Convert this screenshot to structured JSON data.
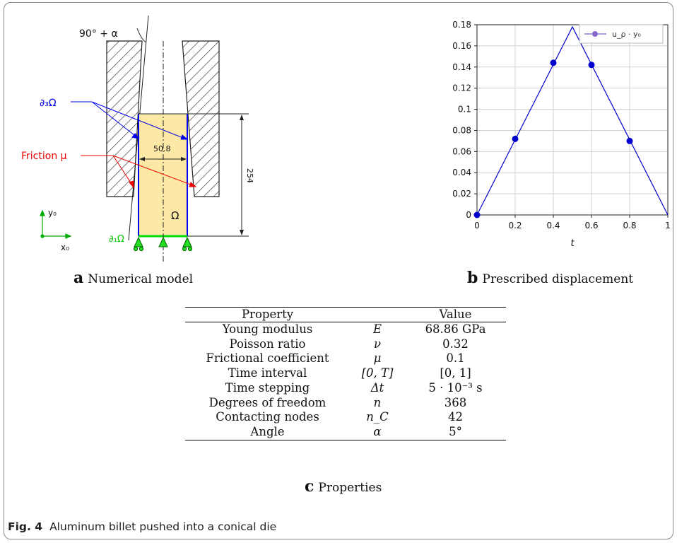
{
  "figure_a": {
    "angle_label": "90° + α",
    "boundary3_label": "∂₃Ω",
    "friction_label": "Friction μ",
    "width_label": "50.8",
    "height_label": "254",
    "domain_label": "Ω",
    "boundary1_label": "∂₁Ω",
    "axis_y_label": "y₀",
    "axis_x_label": "x₀",
    "sub_letter": "a",
    "sub_caption": "Numerical model",
    "colors": {
      "billet": "#fde9a6",
      "boundary3": "#0000ee",
      "friction": "#ee0000",
      "boundary1": "#00cc00",
      "axes": "#00aa00"
    }
  },
  "figure_b": {
    "sub_letter": "b",
    "sub_caption": "Prescribed displacement",
    "chart_data": {
      "type": "line",
      "xlabel": "t",
      "ylabel": "",
      "xlim": [
        0,
        1
      ],
      "ylim": [
        0,
        0.18
      ],
      "x_ticks": [
        "0",
        "0.2",
        "0.4",
        "0.6",
        "0.8",
        "1"
      ],
      "y_ticks": [
        "0",
        "0.02",
        "0.04",
        "0.06",
        "0.08",
        "0.1",
        "0.12",
        "0.14",
        "0.16",
        "0.18"
      ],
      "grid": true,
      "legend": "top-right",
      "series": [
        {
          "name": "u_ρ · y₀",
          "color": "#0000cc",
          "line_x": [
            0,
            0.5,
            1
          ],
          "line_y": [
            0,
            0.178,
            0
          ],
          "markers_x": [
            0,
            0.2,
            0.4,
            0.6,
            0.8
          ],
          "markers_y": [
            0,
            0.072,
            0.144,
            0.142,
            0.07
          ]
        }
      ]
    }
  },
  "figure_c": {
    "sub_letter": "c",
    "sub_caption": "Properties",
    "header": {
      "property": "Property",
      "value": "Value"
    },
    "rows": [
      {
        "property": "Young modulus",
        "symbol": "E",
        "value": "68.86 GPa"
      },
      {
        "property": "Poisson ratio",
        "symbol": "ν",
        "value": "0.32"
      },
      {
        "property": "Frictional coefficient",
        "symbol": "μ",
        "value": "0.1"
      },
      {
        "property": "Time interval",
        "symbol": "[0, T]",
        "value": "[0, 1]"
      },
      {
        "property": "Time stepping",
        "symbol": "Δt",
        "value": "5 · 10⁻³ s"
      },
      {
        "property": "Degrees of freedom",
        "symbol": "n",
        "value": "368"
      },
      {
        "property": "Contacting nodes",
        "symbol": "n_C",
        "value": "42"
      },
      {
        "property": "Angle",
        "symbol": "α",
        "value": "5°"
      }
    ]
  },
  "caption": {
    "label": "Fig. 4",
    "text": "Aluminum billet pushed into a conical die"
  }
}
